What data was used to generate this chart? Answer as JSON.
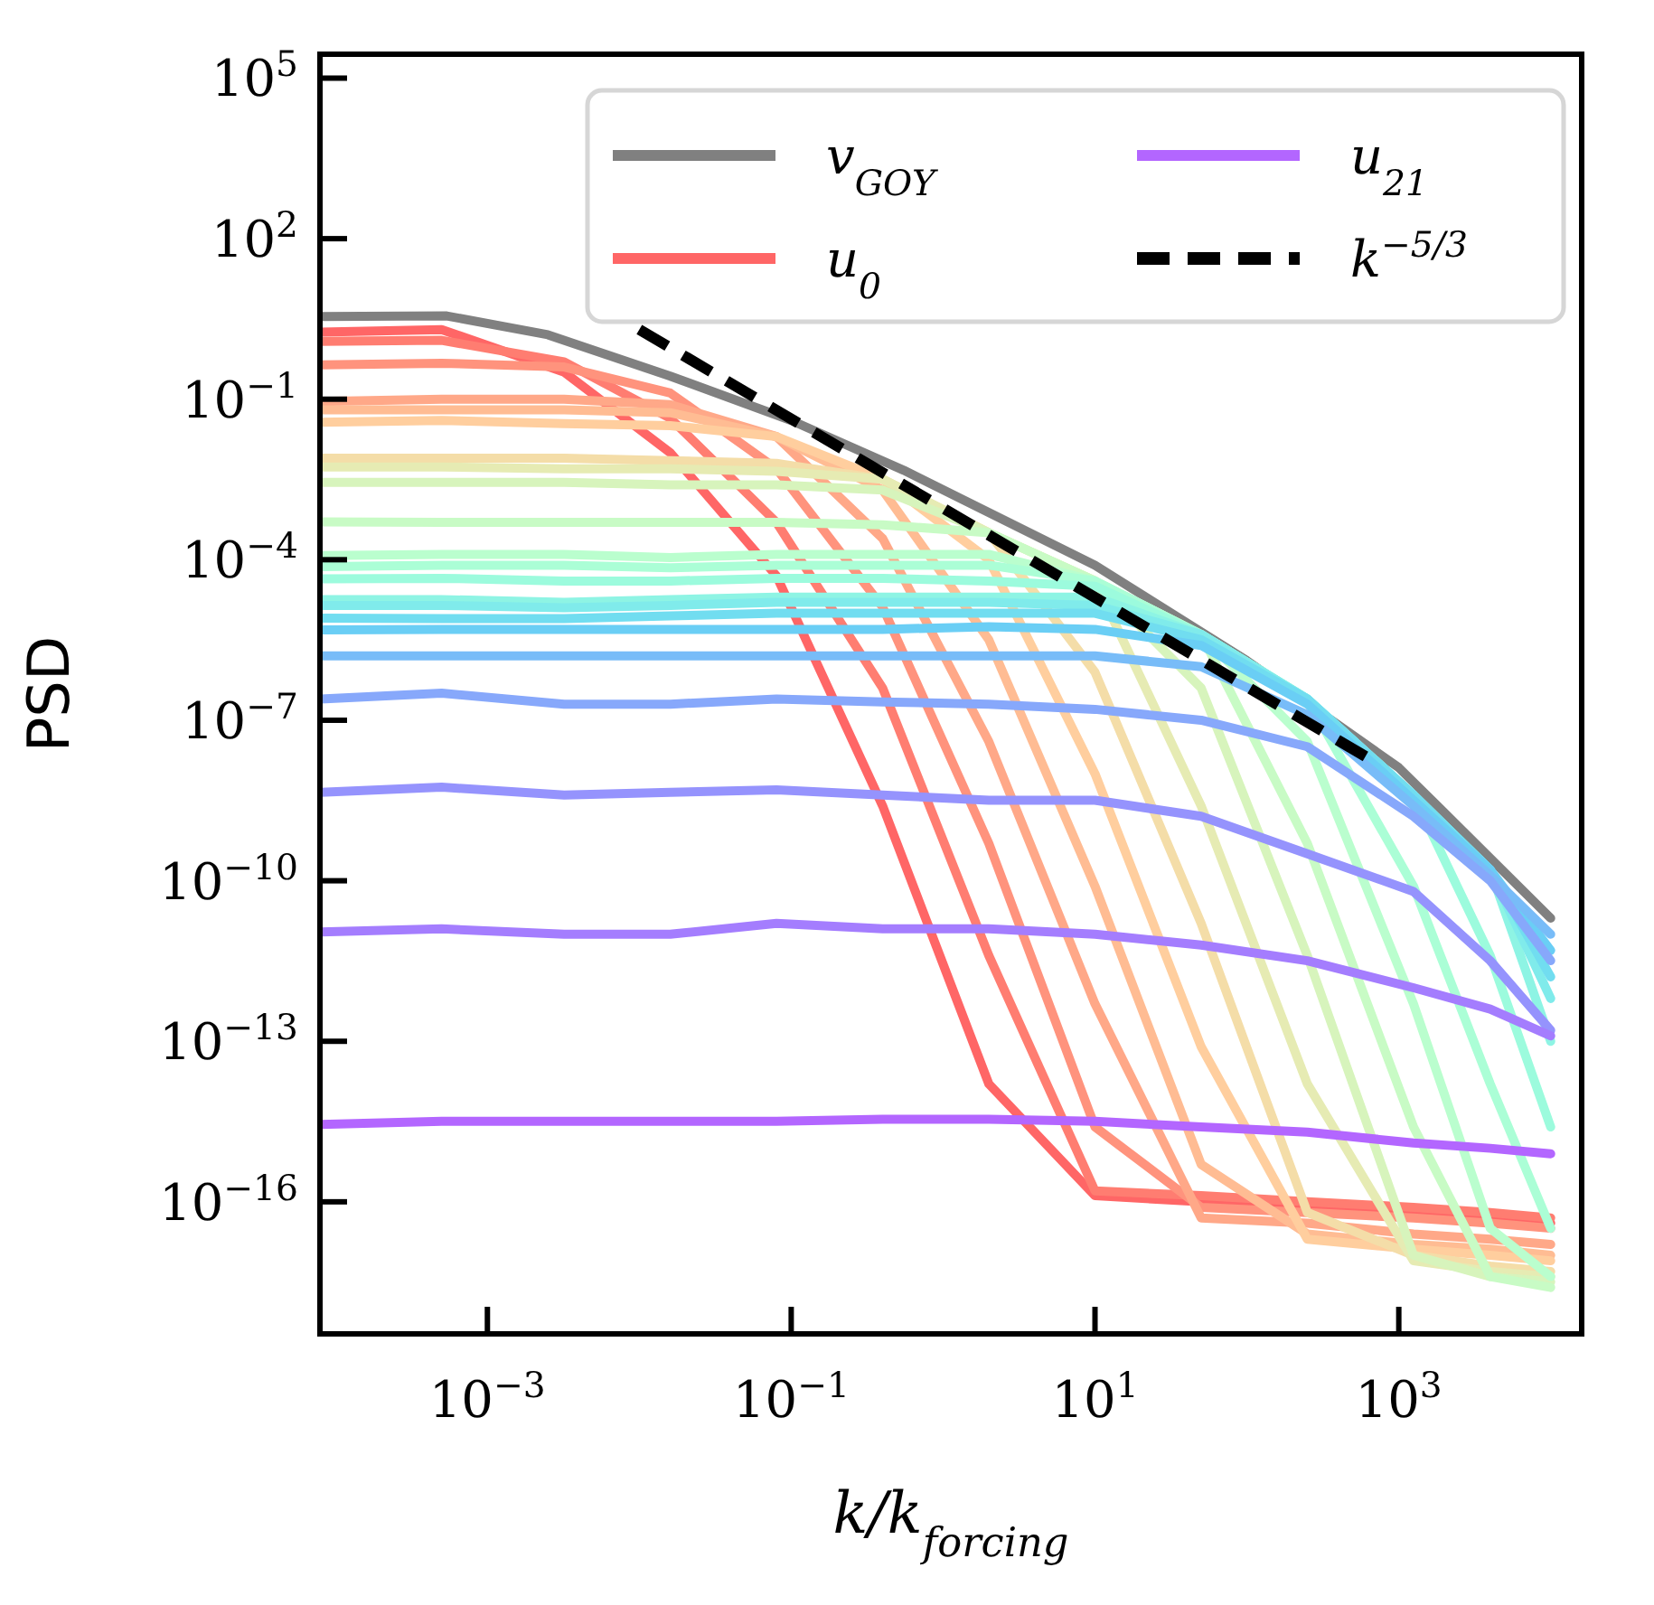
{
  "chart_data": {
    "type": "line",
    "xlabel": "k/k$_{forcing}$",
    "ylabel": "PSD",
    "log": "xy",
    "legend": "top right",
    "xlim": [
      7.9e-05,
      16000.0
    ],
    "ylim": [
      3.4e-19,
      280000.0
    ],
    "xticks": [
      {
        "value": 0.001,
        "label": "10$^{−3}$"
      },
      {
        "value": 0.1,
        "label": "10$^{−1}$"
      },
      {
        "value": 10,
        "label": "10$^{1}$"
      },
      {
        "value": 1000,
        "label": "10$^{3}$"
      }
    ],
    "yticks": [
      {
        "value": 100000.0,
        "label": "10$^{5}$"
      },
      {
        "value": 100,
        "label": "10$^{2}$"
      },
      {
        "value": 0.1,
        "label": "10$^{−1}$"
      },
      {
        "value": 0.0001,
        "label": "10$^{−4}$"
      },
      {
        "value": 1e-07,
        "label": "10$^{−7}$"
      },
      {
        "value": 1e-10,
        "label": "10$^{−10}$"
      },
      {
        "value": 1e-13,
        "label": "10$^{−13}$"
      },
      {
        "value": 1e-16,
        "label": "10$^{−16}$"
      }
    ],
    "x": [
      8e-05,
      0.0005,
      0.0032,
      0.016,
      0.08,
      0.4,
      2,
      10,
      50,
      250,
      1250,
      4000,
      10000
    ],
    "series": [
      {
        "name": "v$_{GOY}$",
        "color": "#808080",
        "x": [
          8e-05,
          0.00054,
          0.0025,
          0.016,
          0.1,
          0.55,
          10,
          100,
          1000,
          1800,
          10000
        ],
        "values": [
          3.5,
          3.6,
          1.6,
          0.27,
          0.04,
          0.0047,
          7.9e-05,
          1.3e-06,
          1.3e-08,
          2.5e-09,
          2e-11
        ]
      },
      {
        "name": "u$_{0}$",
        "color": "#ff6666",
        "values": [
          1.8,
          2.0,
          0.32,
          0.01,
          5e-05,
          2.5e-09,
          1.6e-14,
          1.3e-16,
          1e-16,
          7.9e-17,
          6.3e-17,
          5e-17,
          4e-17
        ]
      },
      {
        "color": "#ff7d71",
        "values": [
          1.2,
          1.26,
          0.5,
          0.044,
          0.0005,
          4e-07,
          4e-12,
          1.6e-16,
          1.3e-16,
          1e-16,
          7.9e-17,
          6.3e-17,
          5e-17
        ]
      },
      {
        "color": "#ff937d",
        "values": [
          0.44,
          0.47,
          0.4,
          0.13,
          0.005,
          1.3e-05,
          5e-10,
          2.5e-15,
          7.9e-17,
          6.3e-17,
          5e-17,
          4e-17,
          3.2e-17
        ]
      },
      {
        "color": "#ffa888",
        "values": [
          0.091,
          0.1,
          0.1,
          0.079,
          0.02,
          0.00025,
          4e-08,
          5e-13,
          5e-17,
          4e-17,
          2.5e-17,
          2e-17,
          1.6e-17
        ]
      },
      {
        "color": "#ffbc93",
        "values": [
          0.063,
          0.063,
          0.063,
          0.056,
          0.02,
          0.002,
          3.2e-06,
          7.9e-11,
          5e-16,
          2.5e-17,
          1.6e-17,
          1.3e-17,
          1e-17
        ]
      },
      {
        "color": "#ffce9e",
        "values": [
          0.037,
          0.04,
          0.035,
          0.032,
          0.02,
          0.0032,
          0.0001,
          1e-08,
          7.9e-14,
          2e-17,
          1.3e-17,
          1e-17,
          7.9e-18
        ]
      },
      {
        "color": "#f4dda8",
        "values": [
          0.0079,
          0.0079,
          0.0079,
          0.0071,
          0.0063,
          0.0032,
          0.00032,
          7.9e-07,
          1.6e-11,
          6.3e-17,
          1e-17,
          6.3e-18,
          5e-18
        ]
      },
      {
        "color": "#e6ebb3",
        "values": [
          0.0054,
          0.0054,
          0.005,
          0.005,
          0.0045,
          0.0032,
          0.00032,
          4e-05,
          2.5e-09,
          1.6e-14,
          7.9e-18,
          5e-18,
          4e-18
        ]
      },
      {
        "color": "#d7f4bc",
        "values": [
          0.0028,
          0.0028,
          0.0028,
          0.0025,
          0.0025,
          0.002,
          0.00032,
          4e-05,
          4e-07,
          4e-12,
          1e-17,
          4e-18,
          3.2e-18
        ]
      },
      {
        "color": "#c8fbc5",
        "values": [
          0.00051,
          0.0005,
          0.0005,
          0.0005,
          0.0005,
          0.00045,
          0.00032,
          4e-05,
          4e-06,
          5e-10,
          2.5e-15,
          4e-18,
          2.5e-18
        ]
      },
      {
        "color": "#bafece",
        "values": [
          0.00012,
          0.000126,
          0.000126,
          0.00011,
          0.000126,
          0.000126,
          0.000126,
          4e-05,
          4e-06,
          4e-08,
          5e-13,
          3.2e-17,
          4e-18
        ]
      },
      {
        "color": "#abfed6",
        "values": [
          7.4e-05,
          7.9e-05,
          7.9e-05,
          7.1e-05,
          7.9e-05,
          7.9e-05,
          7.9e-05,
          4e-05,
          4e-06,
          2.5e-07,
          7.9e-11,
          1.6e-14,
          3.2e-17
        ]
      },
      {
        "color": "#9cfbdd",
        "values": [
          4.4e-05,
          4.5e-05,
          4e-05,
          4e-05,
          4.5e-05,
          4.5e-05,
          4e-05,
          3.2e-05,
          4e-06,
          2.5e-07,
          4e-09,
          4e-12,
          2.5e-15
        ]
      },
      {
        "color": "#8ef4e4",
        "values": [
          1.8e-05,
          1.8e-05,
          1.6e-05,
          1.8e-05,
          2e-05,
          2e-05,
          2e-05,
          2e-05,
          4e-06,
          2.5e-07,
          4e-09,
          1.6e-10,
          1e-13
        ]
      },
      {
        "color": "#80ebeb",
        "values": [
          1.4e-05,
          1.4e-05,
          1.26e-05,
          1.4e-05,
          1.6e-05,
          1.6e-05,
          1.6e-05,
          1.4e-05,
          4e-06,
          2.5e-07,
          4e-09,
          1.6e-10,
          6.3e-13
        ]
      },
      {
        "color": "#71ddf0",
        "values": [
          8.1e-06,
          7.9e-06,
          7.9e-06,
          8.9e-06,
          1e-05,
          1e-05,
          1e-05,
          1e-05,
          3.2e-06,
          2.5e-07,
          4e-09,
          1.6e-10,
          1.6e-12
        ]
      },
      {
        "color": "#6acef5",
        "values": [
          4.9e-06,
          5e-06,
          5e-06,
          5e-06,
          5e-06,
          5e-06,
          5.6e-06,
          5e-06,
          2.5e-06,
          2e-07,
          3.2e-09,
          1.6e-10,
          5e-12
        ]
      },
      {
        "color": "#78bcf8",
        "values": [
          1.6e-06,
          1.6e-06,
          1.6e-06,
          1.6e-06,
          1.6e-06,
          1.6e-06,
          1.6e-06,
          1.6e-06,
          1e-06,
          1.26e-07,
          2.5e-09,
          1.26e-10,
          1e-11
        ]
      },
      {
        "color": "#87a8fb",
        "values": [
          2.5e-07,
          3.2e-07,
          2e-07,
          2e-07,
          2.5e-07,
          2.2e-07,
          2e-07,
          1.6e-07,
          1e-07,
          3.2e-08,
          1.6e-09,
          1e-10,
          3.2e-12
        ]
      },
      {
        "color": "#9593fd",
        "values": [
          4.5e-09,
          5.6e-09,
          4e-09,
          4.5e-09,
          5e-09,
          4e-09,
          3.2e-09,
          3.2e-09,
          1.6e-09,
          3.2e-10,
          6.3e-11,
          3.2e-12,
          1.6e-13
        ]
      },
      {
        "color": "#a47dfe",
        "values": [
          1.1e-11,
          1.26e-11,
          1e-11,
          1e-11,
          1.6e-11,
          1.26e-11,
          1.26e-11,
          1e-11,
          6.3e-12,
          3.2e-12,
          1e-12,
          4e-13,
          1.26e-13
        ]
      },
      {
        "name": "u$_{21}$",
        "color": "#b366ff",
        "values": [
          2.8e-15,
          3.2e-15,
          3.2e-15,
          3.2e-15,
          3.2e-15,
          3.5e-15,
          3.5e-15,
          3.2e-15,
          2.5e-15,
          2e-15,
          1.26e-15,
          1e-15,
          7.9e-16
        ]
      },
      {
        "name": "k$^{−5/3}$",
        "color": "#000000",
        "line_style": "dashed",
        "x": [
          0.01,
          740
        ],
        "values": [
          2,
          1.5e-08
        ]
      }
    ]
  }
}
